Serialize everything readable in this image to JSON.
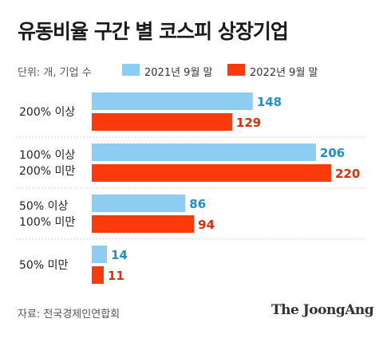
{
  "title": "유동비율 구간 별 코스피 상장기업",
  "unit_label": "단위: 개, 기업 수",
  "source": "자료: 전국경제인연합회",
  "brand": "The JoongAng",
  "colors": {
    "series_2021": "#8ecdf2",
    "series_2022": "#fa3a0b",
    "label_2021": "#1f8fc8",
    "label_2022": "#d9300a",
    "separator": "#d0d0d0"
  },
  "chart_data": {
    "type": "bar",
    "orientation": "horizontal",
    "categories": [
      [
        "200% 이상"
      ],
      [
        "100% 이상",
        "200% 미만"
      ],
      [
        "50% 이상",
        "100% 미만"
      ],
      [
        "50% 미만"
      ]
    ],
    "series": [
      {
        "name": "2021년 9월 말",
        "values": [
          148,
          206,
          86,
          14
        ]
      },
      {
        "name": "2022년 9월 말",
        "values": [
          129,
          220,
          94,
          11
        ]
      }
    ],
    "xlim": [
      0,
      220
    ],
    "legend": "top",
    "grid": false
  }
}
